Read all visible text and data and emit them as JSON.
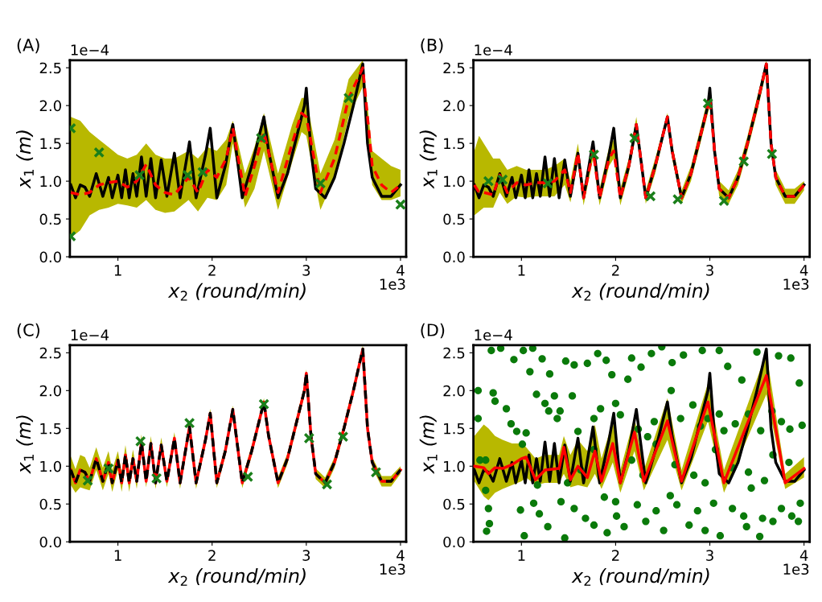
{
  "chart_data": [
    {
      "type": "line",
      "title": "(A)",
      "xlabel": "x$_{2}$ (round/min)",
      "ylabel": "x$_{1}$ (m)",
      "annotations": [
        "1e−4",
        "1e3"
      ],
      "xlim": [
        0.49,
        4.06
      ],
      "ylim": [
        0,
        2.6
      ],
      "xticks": [
        1,
        2,
        3,
        4
      ],
      "yticks": [
        {
          "value": 0,
          "label": "0.0"
        },
        {
          "value": 0.5,
          "label": "0.5"
        },
        {
          "value": 1,
          "label": "1.0"
        },
        {
          "value": 1.5,
          "label": "1.5"
        },
        {
          "value": 2,
          "label": "2.0"
        },
        {
          "value": 2.5,
          "label": "2.5"
        }
      ],
      "grid": false,
      "legend": false,
      "series": [
        {
          "type": "line",
          "color": "#000000",
          "line_style": "solid",
          "marker": "none",
          "x": [
            0.5,
            0.55,
            0.6,
            0.65,
            0.7,
            0.77,
            0.84,
            0.9,
            0.94,
            1.0,
            1.04,
            1.08,
            1.12,
            1.16,
            1.2,
            1.25,
            1.3,
            1.35,
            1.4,
            1.46,
            1.52,
            1.6,
            1.66,
            1.76,
            1.83,
            1.93,
            1.98,
            2.05,
            2.14,
            2.22,
            2.32,
            2.42,
            2.55,
            2.6,
            2.7,
            2.8,
            2.9,
            2.98,
            3.0,
            3.05,
            3.1,
            3.2,
            3.3,
            3.4,
            3.5,
            3.6,
            3.65,
            3.7,
            3.8,
            3.9,
            4.0
          ],
          "values": [
            0.95,
            0.78,
            0.95,
            0.92,
            0.8,
            1.1,
            0.8,
            1.05,
            0.78,
            1.08,
            0.78,
            1.15,
            0.78,
            1.1,
            0.8,
            1.32,
            0.8,
            1.3,
            0.78,
            1.28,
            0.8,
            1.37,
            0.78,
            1.52,
            0.78,
            1.35,
            1.7,
            0.78,
            1.2,
            1.75,
            0.78,
            1.2,
            1.85,
            1.4,
            0.78,
            1.1,
            1.6,
            2.0,
            2.23,
            1.4,
            0.9,
            0.78,
            1.05,
            1.5,
            2.0,
            2.55,
            1.5,
            1.05,
            0.8,
            0.8,
            0.95
          ]
        },
        {
          "type": "line",
          "color": "#ff0000",
          "line_style": "dashed",
          "marker": "none",
          "x": [
            0.5,
            0.6,
            0.7,
            0.8,
            0.9,
            1.0,
            1.1,
            1.2,
            1.3,
            1.4,
            1.5,
            1.6,
            1.75,
            1.85,
            1.95,
            2.05,
            2.15,
            2.22,
            2.35,
            2.45,
            2.55,
            2.7,
            2.85,
            2.95,
            3.0,
            3.15,
            3.3,
            3.45,
            3.6,
            3.7,
            3.8,
            3.9,
            4.0
          ],
          "values": [
            0.85,
            0.82,
            0.85,
            0.95,
            0.98,
            1.0,
            0.92,
            1.0,
            1.22,
            0.95,
            0.85,
            0.82,
            1.05,
            0.85,
            1.15,
            1.05,
            1.3,
            1.7,
            0.8,
            1.2,
            1.65,
            0.85,
            1.5,
            1.9,
            1.85,
            0.85,
            1.3,
            2.1,
            2.5,
            1.2,
            0.95,
            0.85,
            0.95
          ],
          "upper": [
            1.85,
            1.8,
            1.65,
            1.55,
            1.45,
            1.35,
            1.3,
            1.35,
            1.5,
            1.35,
            1.3,
            1.3,
            1.4,
            1.3,
            1.45,
            1.4,
            1.55,
            1.8,
            1.1,
            1.45,
            1.9,
            1.1,
            1.75,
            2.1,
            2.1,
            1.1,
            1.55,
            2.35,
            2.6,
            1.4,
            1.3,
            1.2,
            1.15
          ],
          "lower": [
            0.25,
            0.35,
            0.55,
            0.62,
            0.65,
            0.7,
            0.68,
            0.65,
            0.75,
            0.62,
            0.58,
            0.6,
            0.75,
            0.6,
            0.78,
            0.75,
            0.95,
            1.5,
            0.65,
            0.9,
            1.4,
            0.62,
            1.25,
            1.65,
            1.6,
            0.62,
            1.05,
            1.85,
            2.25,
            0.95,
            0.75,
            0.75,
            0.8
          ]
        },
        {
          "type": "scatter",
          "color": "#1a7f1a",
          "marker": "cross",
          "x": [
            0.5,
            0.5,
            0.8,
            1.23,
            1.74,
            1.9,
            2.52,
            3.15,
            3.45,
            4.0
          ],
          "values": [
            1.7,
            0.27,
            1.38,
            1.08,
            1.08,
            1.12,
            1.57,
            0.97,
            2.1,
            0.69
          ]
        }
      ]
    },
    {
      "type": "line",
      "title": "(B)",
      "xlabel": "x$_{2}$ (round/min)",
      "ylabel": "x$_{1}$ (m)",
      "annotations": [
        "1e−4",
        "1e3"
      ],
      "xlim": [
        0.49,
        4.06
      ],
      "ylim": [
        0,
        2.6
      ],
      "xticks": [
        1,
        2,
        3,
        4
      ],
      "yticks": [
        {
          "value": 0,
          "label": "0.0"
        },
        {
          "value": 0.5,
          "label": "0.5"
        },
        {
          "value": 1,
          "label": "1.0"
        },
        {
          "value": 1.5,
          "label": "1.5"
        },
        {
          "value": 2,
          "label": "2.0"
        },
        {
          "value": 2.5,
          "label": "2.5"
        }
      ],
      "grid": false,
      "legend": false,
      "series": [
        {
          "type": "line",
          "color": "#000000",
          "line_style": "solid",
          "marker": "none",
          "x": [
            0.5,
            0.55,
            0.6,
            0.65,
            0.7,
            0.77,
            0.84,
            0.9,
            0.94,
            1.0,
            1.04,
            1.08,
            1.12,
            1.16,
            1.2,
            1.25,
            1.3,
            1.35,
            1.4,
            1.46,
            1.52,
            1.6,
            1.66,
            1.76,
            1.83,
            1.93,
            1.98,
            2.05,
            2.14,
            2.22,
            2.32,
            2.42,
            2.55,
            2.6,
            2.7,
            2.8,
            2.9,
            2.98,
            3.0,
            3.05,
            3.1,
            3.2,
            3.3,
            3.4,
            3.5,
            3.6,
            3.65,
            3.7,
            3.8,
            3.9,
            4.0
          ],
          "values": [
            0.95,
            0.78,
            0.95,
            0.92,
            0.8,
            1.1,
            0.8,
            1.05,
            0.78,
            1.08,
            0.78,
            1.15,
            0.78,
            1.1,
            0.8,
            1.32,
            0.8,
            1.3,
            0.78,
            1.28,
            0.8,
            1.37,
            0.78,
            1.52,
            0.78,
            1.35,
            1.7,
            0.78,
            1.2,
            1.75,
            0.78,
            1.2,
            1.85,
            1.4,
            0.78,
            1.1,
            1.6,
            2.0,
            2.23,
            1.4,
            0.9,
            0.78,
            1.05,
            1.5,
            2.0,
            2.55,
            1.5,
            1.05,
            0.8,
            0.8,
            0.95
          ]
        },
        {
          "type": "line",
          "color": "#ff0000",
          "line_style": "dashed",
          "marker": "none",
          "x": [
            0.5,
            0.55,
            0.6,
            0.7,
            0.77,
            0.85,
            0.95,
            1.05,
            1.15,
            1.25,
            1.35,
            1.46,
            1.52,
            1.6,
            1.66,
            1.76,
            1.83,
            1.93,
            1.98,
            2.05,
            2.14,
            2.22,
            2.32,
            2.42,
            2.55,
            2.6,
            2.7,
            2.8,
            2.9,
            2.98,
            3.0,
            3.05,
            3.1,
            3.2,
            3.3,
            3.4,
            3.5,
            3.6,
            3.65,
            3.7,
            3.8,
            3.9,
            4.0
          ],
          "values": [
            0.95,
            0.85,
            0.85,
            0.82,
            1.08,
            0.85,
            0.98,
            0.95,
            0.98,
            0.98,
            1.0,
            1.15,
            0.85,
            1.37,
            0.78,
            1.4,
            0.78,
            1.3,
            1.4,
            0.78,
            1.2,
            1.75,
            0.78,
            1.2,
            1.85,
            1.4,
            0.78,
            1.1,
            1.6,
            2.0,
            2.1,
            1.4,
            0.9,
            0.78,
            1.05,
            1.5,
            2.0,
            2.55,
            1.5,
            1.05,
            0.8,
            0.8,
            0.95
          ],
          "upper": [
            1.4,
            1.6,
            1.5,
            1.3,
            1.3,
            1.15,
            1.2,
            1.15,
            1.15,
            1.15,
            1.2,
            1.3,
            1.0,
            1.5,
            0.9,
            1.55,
            0.9,
            1.45,
            1.55,
            0.9,
            1.3,
            1.85,
            0.88,
            1.3,
            1.9,
            1.5,
            0.88,
            1.2,
            1.7,
            2.1,
            2.2,
            1.5,
            1.0,
            0.88,
            1.15,
            1.6,
            2.1,
            2.6,
            1.6,
            1.15,
            0.9,
            0.9,
            1.0
          ],
          "lower": [
            0.55,
            0.6,
            0.65,
            0.65,
            0.85,
            0.7,
            0.8,
            0.78,
            0.8,
            0.8,
            0.8,
            0.95,
            0.72,
            1.25,
            0.68,
            1.3,
            0.68,
            1.2,
            1.3,
            0.68,
            1.1,
            1.65,
            0.7,
            1.1,
            1.8,
            1.3,
            0.7,
            1.0,
            1.5,
            1.9,
            2.0,
            1.3,
            0.8,
            0.7,
            0.95,
            1.4,
            1.9,
            2.45,
            1.4,
            0.95,
            0.7,
            0.7,
            0.88
          ]
        },
        {
          "type": "scatter",
          "color": "#1a7f1a",
          "marker": "cross",
          "x": [
            0.65,
            0.8,
            1.28,
            1.77,
            2.2,
            2.37,
            2.66,
            2.98,
            3.15,
            3.36,
            3.66
          ],
          "values": [
            1.0,
            1.02,
            0.97,
            1.35,
            1.57,
            0.8,
            0.76,
            2.03,
            0.74,
            1.26,
            1.36
          ]
        }
      ]
    },
    {
      "type": "line",
      "title": "(C)",
      "xlabel": "x$_{2}$ (round/min)",
      "ylabel": "x$_{1}$ (m)",
      "annotations": [
        "1e−4",
        "1e3"
      ],
      "xlim": [
        0.49,
        4.06
      ],
      "ylim": [
        0,
        2.6
      ],
      "xticks": [
        1,
        2,
        3,
        4
      ],
      "yticks": [
        {
          "value": 0,
          "label": "0.0"
        },
        {
          "value": 0.5,
          "label": "0.5"
        },
        {
          "value": 1,
          "label": "1.0"
        },
        {
          "value": 1.5,
          "label": "1.5"
        },
        {
          "value": 2,
          "label": "2.0"
        },
        {
          "value": 2.5,
          "label": "2.5"
        }
      ],
      "grid": false,
      "legend": false,
      "series": [
        {
          "type": "line",
          "color": "#ff0000",
          "line_style": "solid",
          "marker": "none",
          "x": [
            0.5,
            0.55,
            0.6,
            0.65,
            0.7,
            0.77,
            0.84,
            0.9,
            0.94,
            1.0,
            1.04,
            1.08,
            1.12,
            1.16,
            1.2,
            1.25,
            1.3,
            1.35,
            1.4,
            1.46,
            1.52,
            1.6,
            1.66,
            1.76,
            1.83,
            1.93,
            1.98,
            2.05,
            2.14,
            2.22,
            2.32,
            2.42,
            2.55,
            2.6,
            2.7,
            2.8,
            2.9,
            2.98,
            3.0,
            3.05,
            3.1,
            3.2,
            3.3,
            3.4,
            3.5,
            3.6,
            3.65,
            3.7,
            3.8,
            3.9,
            4.0
          ],
          "values": [
            0.95,
            0.78,
            0.95,
            0.92,
            0.8,
            1.1,
            0.8,
            1.05,
            0.78,
            1.08,
            0.78,
            1.15,
            0.78,
            1.1,
            0.8,
            1.32,
            0.8,
            1.3,
            0.78,
            1.28,
            0.8,
            1.37,
            0.78,
            1.52,
            0.78,
            1.35,
            1.7,
            0.78,
            1.2,
            1.75,
            0.78,
            1.2,
            1.85,
            1.4,
            0.78,
            1.1,
            1.6,
            2.0,
            2.23,
            1.4,
            0.9,
            0.78,
            1.05,
            1.5,
            2.0,
            2.55,
            1.5,
            1.05,
            0.8,
            0.8,
            0.95
          ],
          "upper": [
            1.13,
            0.96,
            1.15,
            1.12,
            0.98,
            1.25,
            0.98,
            1.2,
            0.95,
            1.2,
            0.92,
            1.28,
            0.92,
            1.22,
            0.92,
            1.42,
            0.9,
            1.4,
            0.88,
            1.38,
            0.9,
            1.45,
            0.86,
            1.6,
            0.86,
            1.42,
            1.76,
            0.85,
            1.27,
            1.8,
            0.85,
            1.27,
            1.9,
            1.47,
            0.85,
            1.17,
            1.67,
            2.07,
            2.28,
            1.47,
            0.97,
            0.85,
            1.12,
            1.57,
            2.07,
            2.6,
            1.57,
            1.12,
            0.87,
            0.87,
            1.0
          ],
          "lower": [
            0.75,
            0.65,
            0.72,
            0.7,
            0.68,
            0.95,
            0.68,
            0.9,
            0.66,
            0.95,
            0.66,
            1.02,
            0.66,
            0.98,
            0.7,
            1.22,
            0.72,
            1.2,
            0.7,
            1.18,
            0.72,
            1.29,
            0.7,
            1.44,
            0.7,
            1.28,
            1.64,
            0.71,
            1.13,
            1.7,
            0.71,
            1.13,
            1.8,
            1.33,
            0.71,
            1.03,
            1.53,
            1.93,
            2.18,
            1.33,
            0.83,
            0.71,
            0.98,
            1.43,
            1.93,
            2.5,
            1.43,
            0.98,
            0.73,
            0.73,
            0.9
          ]
        },
        {
          "type": "line",
          "color": "#000000",
          "line_style": "dashed",
          "marker": "none",
          "x": [
            0.5,
            0.55,
            0.6,
            0.65,
            0.7,
            0.77,
            0.84,
            0.9,
            0.94,
            1.0,
            1.04,
            1.08,
            1.12,
            1.16,
            1.2,
            1.25,
            1.3,
            1.35,
            1.4,
            1.46,
            1.52,
            1.6,
            1.66,
            1.76,
            1.83,
            1.93,
            1.98,
            2.05,
            2.14,
            2.22,
            2.32,
            2.42,
            2.55,
            2.6,
            2.7,
            2.8,
            2.9,
            2.98,
            3.0,
            3.05,
            3.1,
            3.2,
            3.3,
            3.4,
            3.5,
            3.6,
            3.65,
            3.7,
            3.8,
            3.9,
            4.0
          ],
          "values": [
            0.95,
            0.78,
            0.95,
            0.92,
            0.8,
            1.1,
            0.8,
            1.05,
            0.78,
            1.08,
            0.78,
            1.15,
            0.78,
            1.1,
            0.8,
            1.32,
            0.8,
            1.3,
            0.78,
            1.28,
            0.8,
            1.37,
            0.78,
            1.52,
            0.78,
            1.35,
            1.7,
            0.78,
            1.2,
            1.75,
            0.78,
            1.2,
            1.85,
            1.4,
            0.78,
            1.1,
            1.6,
            2.0,
            2.23,
            1.4,
            0.9,
            0.78,
            1.05,
            1.5,
            2.0,
            2.55,
            1.5,
            1.05,
            0.8,
            0.8,
            0.95
          ]
        },
        {
          "type": "scatter",
          "color": "#1a7f1a",
          "marker": "cross",
          "x": [
            0.68,
            0.9,
            1.24,
            1.41,
            1.76,
            2.38,
            2.55,
            3.03,
            3.22,
            3.39,
            3.74
          ],
          "values": [
            0.81,
            0.97,
            1.33,
            0.84,
            1.57,
            0.86,
            1.82,
            1.37,
            0.76,
            1.39,
            0.92
          ]
        }
      ]
    },
    {
      "type": "line",
      "title": "(D)",
      "xlabel": "x$_{2}$ (round/min)",
      "ylabel": "x$_{1}$ (m)",
      "annotations": [
        "1e−4",
        "1e3"
      ],
      "xlim": [
        0.49,
        4.06
      ],
      "ylim": [
        0,
        2.6
      ],
      "xticks": [
        1,
        2,
        3,
        4
      ],
      "yticks": [
        {
          "value": 0,
          "label": "0.0"
        },
        {
          "value": 0.5,
          "label": "0.5"
        },
        {
          "value": 1,
          "label": "1.0"
        },
        {
          "value": 1.5,
          "label": "1.5"
        },
        {
          "value": 2,
          "label": "2.0"
        },
        {
          "value": 2.5,
          "label": "2.5"
        }
      ],
      "grid": false,
      "legend": false,
      "series": [
        {
          "type": "scatter",
          "color": "#0a7a0a",
          "marker": "circle",
          "x": [
            0.54,
            0.68,
            0.78,
            0.92,
            1.02,
            1.12,
            1.22,
            1.09,
            1.3,
            1.47,
            1.56,
            1.7,
            1.81,
            1.9,
            1.96,
            2.17,
            2.27,
            2.38,
            2.49,
            2.6,
            2.72,
            2.92,
            3.1,
            3.19,
            3.34,
            3.5,
            3.73,
            3.86,
            3.95,
            0.54,
            0.7,
            0.72,
            0.84,
            0.89,
            0.95,
            1.05,
            1.16,
            1.25,
            1.35,
            1.41,
            1.54,
            1.29,
            1.38,
            1.6,
            1.77,
            1.84,
            2.0,
            2.05,
            2.13,
            2.24,
            2.34,
            2.41,
            2.59,
            2.69,
            2.82,
            2.9,
            2.98,
            3.1,
            3.15,
            3.27,
            3.41,
            3.54,
            3.66,
            3.76,
            3.85,
            3.98,
            0.56,
            0.62,
            0.65,
            0.66,
            0.63,
            0.99,
            1.03,
            1.13,
            1.19,
            1.28,
            1.42,
            1.46,
            1.56,
            1.68,
            1.77,
            1.88,
            1.91,
            2.0,
            2.01,
            2.09,
            2.23,
            2.32,
            2.43,
            2.51,
            2.58,
            2.65,
            2.78,
            2.87,
            2.95,
            3.04,
            3.11,
            3.24,
            3.36,
            3.39,
            3.44,
            3.53,
            3.56,
            3.67,
            3.76,
            3.87,
            3.96,
            3.94,
            0.62,
            1.01,
            1.17,
            1.49,
            1.63,
            1.77,
            2.17,
            2.29,
            2.43,
            2.63,
            2.83,
            2.95,
            3.06,
            3.24,
            3.41,
            3.58,
            3.67,
            3.84
          ],
          "values": [
            2.0,
            2.53,
            2.56,
            2.41,
            2.53,
            2.56,
            2.42,
            2.25,
            2.22,
            2.39,
            2.34,
            2.36,
            2.49,
            2.4,
            2.21,
            2.43,
            2.31,
            2.49,
            2.58,
            2.37,
            2.47,
            2.53,
            2.53,
            2.32,
            2.14,
            2.51,
            2.46,
            2.43,
            2.1,
            1.63,
            1.97,
            1.86,
            1.76,
            1.56,
            1.46,
            1.44,
            1.95,
            1.83,
            1.93,
            1.73,
            1.93,
            1.73,
            1.63,
            1.46,
            1.63,
            1.76,
            1.83,
            1.68,
            2.15,
            1.49,
            1.39,
            1.59,
            2.0,
            1.63,
            1.81,
            1.53,
            1.63,
            1.69,
            1.47,
            1.56,
            1.69,
            1.47,
            1.73,
            1.59,
            1.49,
            1.54,
            1.08,
            0.68,
            0.44,
            0.24,
            0.14,
            0.42,
            0.08,
            0.51,
            0.37,
            0.2,
            0.53,
            0.05,
            0.44,
            0.31,
            0.22,
            0.59,
            0.12,
            0.53,
            0.34,
            0.2,
            0.49,
            0.27,
            0.41,
            0.15,
            0.61,
            0.49,
            0.22,
            0.41,
            0.15,
            0.51,
            0.08,
            0.44,
            0.34,
            0.2,
            0.71,
            0.07,
            0.31,
            0.27,
            0.44,
            0.34,
            0.51,
            0.27,
            1.08,
            1.29,
            0.75,
            0.78,
            0.95,
            1.22,
            1.08,
            0.88,
            1.29,
            1.02,
            0.88,
            0.78,
            1.22,
            0.98,
            0.92,
            0.81,
            1.15,
            1.05
          ]
        },
        {
          "type": "line",
          "color": "#000000",
          "line_style": "solid",
          "marker": "none",
          "x": [
            0.5,
            0.55,
            0.6,
            0.65,
            0.7,
            0.77,
            0.84,
            0.9,
            0.94,
            1.0,
            1.04,
            1.08,
            1.12,
            1.16,
            1.2,
            1.25,
            1.3,
            1.35,
            1.4,
            1.46,
            1.52,
            1.6,
            1.66,
            1.76,
            1.83,
            1.93,
            1.98,
            2.05,
            2.14,
            2.22,
            2.32,
            2.42,
            2.55,
            2.6,
            2.7,
            2.8,
            2.9,
            2.98,
            3.0,
            3.05,
            3.1,
            3.2,
            3.3,
            3.4,
            3.5,
            3.6,
            3.65,
            3.7,
            3.8,
            3.9,
            4.0
          ],
          "values": [
            0.95,
            0.78,
            0.95,
            0.92,
            0.8,
            1.1,
            0.8,
            1.05,
            0.78,
            1.08,
            0.78,
            1.15,
            0.78,
            1.1,
            0.8,
            1.32,
            0.8,
            1.3,
            0.78,
            1.28,
            0.8,
            1.37,
            0.78,
            1.52,
            0.78,
            1.35,
            1.7,
            0.78,
            1.2,
            1.75,
            0.78,
            1.2,
            1.85,
            1.4,
            0.78,
            1.1,
            1.6,
            2.0,
            2.23,
            1.4,
            0.9,
            0.78,
            1.05,
            1.5,
            2.0,
            2.55,
            1.5,
            1.05,
            0.8,
            0.8,
            0.95
          ]
        },
        {
          "type": "line",
          "color": "#ff0000",
          "line_style": "solid",
          "marker": "none",
          "x": [
            0.5,
            0.6,
            0.65,
            0.72,
            0.8,
            0.9,
            1.0,
            1.05,
            1.15,
            1.25,
            1.4,
            1.45,
            1.52,
            1.6,
            1.7,
            1.78,
            1.85,
            1.97,
            2.05,
            2.2,
            2.3,
            2.55,
            2.7,
            2.98,
            3.15,
            3.6,
            3.8,
            4.0
          ],
          "values": [
            1.0,
            0.98,
            0.9,
            0.98,
            0.97,
            1.02,
            1.1,
            1.12,
            0.82,
            0.95,
            0.97,
            1.25,
            0.82,
            1.0,
            0.85,
            1.2,
            0.8,
            1.3,
            0.78,
            1.45,
            0.8,
            1.6,
            0.8,
            1.85,
            0.78,
            2.2,
            0.78,
            0.97
          ],
          "upper": [
            1.4,
            1.55,
            1.5,
            1.4,
            1.35,
            1.3,
            1.3,
            1.25,
            1.1,
            1.15,
            1.15,
            1.4,
            1.15,
            1.35,
            1.2,
            1.55,
            1.1,
            1.6,
            0.95,
            1.65,
            0.95,
            1.9,
            0.95,
            2.1,
            0.95,
            2.5,
            0.9,
            1.12
          ],
          "lower": [
            0.8,
            0.6,
            0.55,
            0.65,
            0.7,
            0.75,
            0.8,
            0.85,
            0.75,
            0.78,
            0.78,
            0.9,
            0.72,
            0.75,
            0.72,
            0.9,
            0.7,
            1.05,
            0.65,
            1.2,
            0.68,
            1.35,
            0.68,
            1.6,
            0.65,
            1.95,
            0.7,
            0.85
          ]
        }
      ]
    }
  ]
}
